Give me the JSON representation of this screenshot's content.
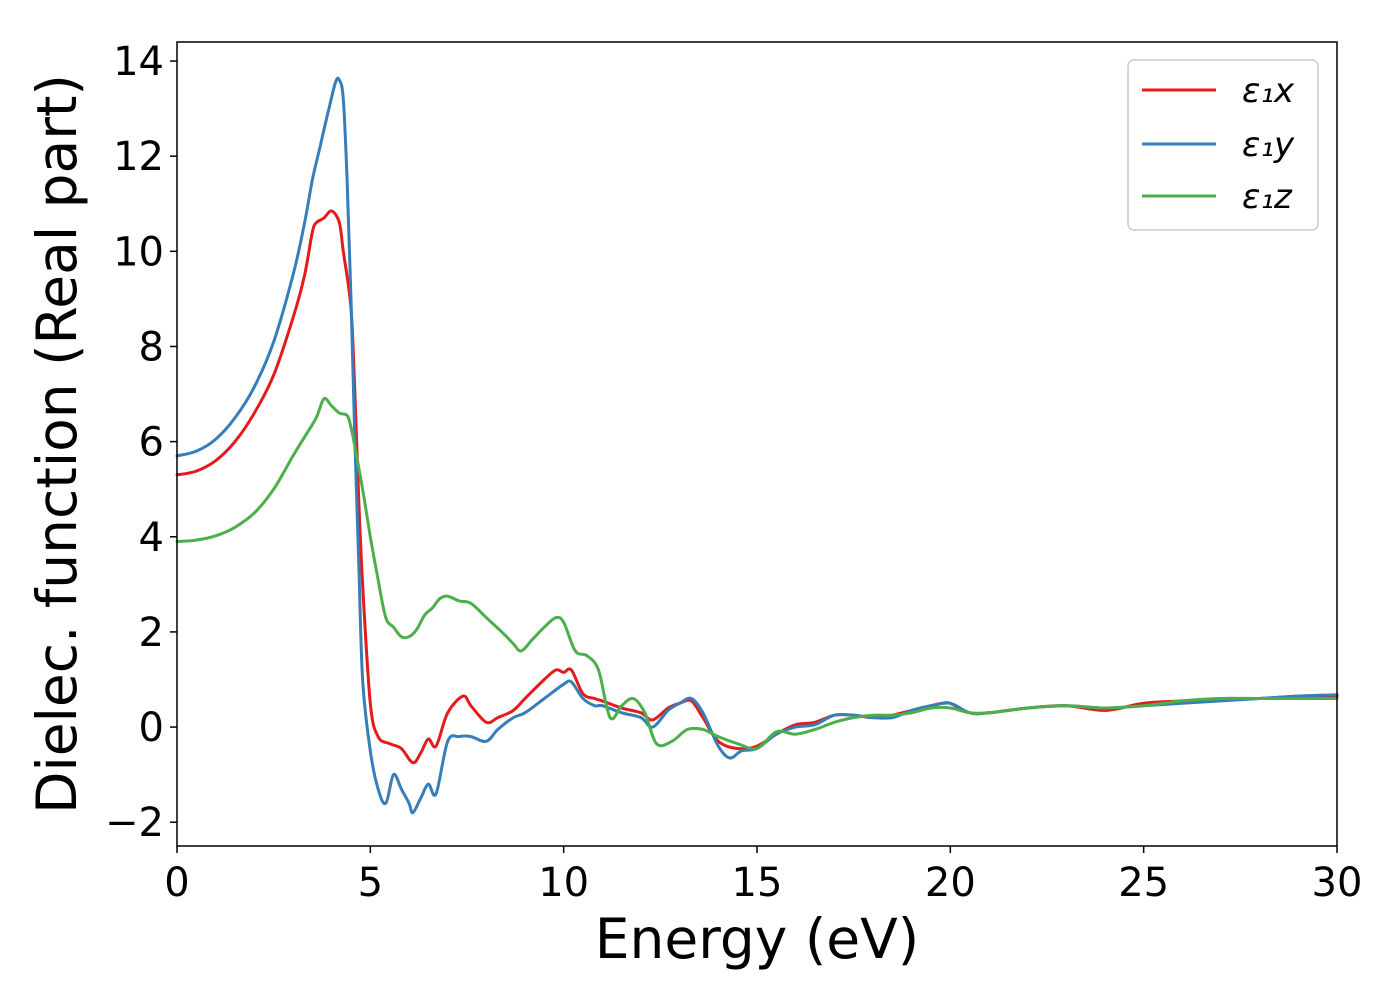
{
  "chart_data": {
    "type": "line",
    "xlabel": "Energy (eV)",
    "ylabel": "Dielec. function (Real part)",
    "xlim": [
      0,
      30
    ],
    "ylim": [
      -2.5,
      14.4
    ],
    "xticks": [
      0,
      5,
      10,
      15,
      20,
      25,
      30
    ],
    "yticks": [
      -2,
      0,
      2,
      4,
      6,
      8,
      10,
      12,
      14
    ],
    "xtick_labels": [
      "0",
      "5",
      "10",
      "15",
      "20",
      "25",
      "30"
    ],
    "ytick_labels": [
      "−2",
      "0",
      "2",
      "4",
      "6",
      "8",
      "10",
      "12",
      "14"
    ],
    "grid": false,
    "legend_position": "top-right",
    "series": [
      {
        "name": "ε₁x",
        "color": "#e41a1c",
        "x": [
          0,
          0.5,
          1,
          1.5,
          2,
          2.5,
          3,
          3.3,
          3.5,
          3.6,
          3.8,
          4.0,
          4.2,
          4.3,
          4.5,
          4.6,
          4.7,
          4.8,
          5.0,
          5.2,
          5.5,
          5.8,
          6.1,
          6.3,
          6.5,
          6.7,
          7.0,
          7.4,
          7.6,
          8.0,
          8.3,
          8.7,
          9.0,
          9.5,
          9.8,
          10.0,
          10.2,
          10.5,
          10.8,
          11.0,
          11.5,
          12.0,
          12.3,
          12.7,
          13.0,
          13.3,
          13.6,
          14.0,
          14.5,
          15.0,
          15.5,
          16.0,
          16.5,
          17.0,
          17.5,
          18.0,
          18.5,
          19.0,
          19.5,
          19.8,
          20.0,
          20.5,
          21.0,
          22.0,
          23.0,
          24.0,
          25.0,
          26.0,
          27.0,
          28.0,
          29.0,
          30.0
        ],
        "y": [
          5.3,
          5.38,
          5.6,
          6.0,
          6.6,
          7.4,
          8.6,
          9.5,
          10.4,
          10.6,
          10.7,
          10.85,
          10.6,
          10.0,
          8.8,
          7.0,
          4.8,
          3.0,
          0.5,
          -0.2,
          -0.35,
          -0.45,
          -0.75,
          -0.55,
          -0.25,
          -0.4,
          0.3,
          0.65,
          0.45,
          0.1,
          0.2,
          0.35,
          0.6,
          1.0,
          1.2,
          1.15,
          1.2,
          0.7,
          0.6,
          0.55,
          0.4,
          0.3,
          0.15,
          0.4,
          0.5,
          0.55,
          0.2,
          -0.3,
          -0.45,
          -0.4,
          -0.15,
          0.05,
          0.1,
          0.25,
          0.25,
          0.2,
          0.25,
          0.35,
          0.45,
          0.5,
          0.5,
          0.3,
          0.3,
          0.4,
          0.45,
          0.35,
          0.5,
          0.55,
          0.6,
          0.6,
          0.65,
          0.65
        ]
      },
      {
        "name": "ε₁y",
        "color": "#377eb8",
        "x": [
          0,
          0.5,
          1,
          1.5,
          2,
          2.5,
          3,
          3.3,
          3.5,
          3.7,
          3.9,
          4.1,
          4.2,
          4.3,
          4.4,
          4.5,
          4.6,
          4.7,
          4.8,
          5.0,
          5.2,
          5.4,
          5.6,
          5.8,
          6.0,
          6.1,
          6.3,
          6.5,
          6.7,
          7.0,
          7.3,
          7.6,
          8.0,
          8.3,
          8.7,
          9.0,
          9.5,
          10.0,
          10.2,
          10.5,
          10.8,
          11.0,
          11.5,
          12.0,
          12.3,
          12.7,
          13.0,
          13.3,
          13.6,
          14.0,
          14.3,
          14.6,
          15.0,
          15.5,
          16.0,
          16.5,
          17.0,
          17.5,
          18.0,
          18.5,
          19.0,
          19.5,
          20.0,
          20.5,
          21.0,
          22.0,
          23.0,
          24.0,
          25.0,
          26.0,
          27.0,
          28.0,
          29.0,
          30.0
        ],
        "y": [
          5.7,
          5.8,
          6.05,
          6.5,
          7.15,
          8.1,
          9.5,
          10.6,
          11.5,
          12.2,
          12.9,
          13.55,
          13.6,
          13.2,
          11.5,
          9.0,
          6.0,
          3.5,
          1.0,
          -0.5,
          -1.3,
          -1.6,
          -1.0,
          -1.3,
          -1.6,
          -1.8,
          -1.5,
          -1.2,
          -1.4,
          -0.3,
          -0.2,
          -0.2,
          -0.3,
          -0.05,
          0.2,
          0.3,
          0.6,
          0.9,
          0.95,
          0.6,
          0.45,
          0.45,
          0.3,
          0.2,
          0.0,
          0.35,
          0.5,
          0.6,
          0.3,
          -0.4,
          -0.65,
          -0.5,
          -0.45,
          -0.15,
          0.0,
          0.05,
          0.25,
          0.25,
          0.2,
          0.2,
          0.35,
          0.45,
          0.5,
          0.3,
          0.3,
          0.4,
          0.45,
          0.4,
          0.45,
          0.5,
          0.55,
          0.6,
          0.65,
          0.68
        ]
      },
      {
        "name": "ε₁z",
        "color": "#4daf4a",
        "x": [
          0,
          0.5,
          1,
          1.5,
          2,
          2.5,
          3,
          3.3,
          3.6,
          3.8,
          4.0,
          4.2,
          4.4,
          4.5,
          4.6,
          4.8,
          5.0,
          5.2,
          5.4,
          5.6,
          5.8,
          6.0,
          6.2,
          6.4,
          6.6,
          6.8,
          7.0,
          7.3,
          7.6,
          8.0,
          8.4,
          8.7,
          8.9,
          9.2,
          9.5,
          9.8,
          10.0,
          10.3,
          10.6,
          10.9,
          11.2,
          11.5,
          11.8,
          12.1,
          12.4,
          12.8,
          13.2,
          13.6,
          14.0,
          14.5,
          15.0,
          15.5,
          16.0,
          16.5,
          17.0,
          17.5,
          18.0,
          18.5,
          19.0,
          19.5,
          20.0,
          20.5,
          21.0,
          22.0,
          23.0,
          24.0,
          25.0,
          26.0,
          27.0,
          28.0,
          29.0,
          30.0
        ],
        "y": [
          3.9,
          3.93,
          4.02,
          4.2,
          4.5,
          5.0,
          5.7,
          6.1,
          6.5,
          6.9,
          6.75,
          6.6,
          6.55,
          6.3,
          5.9,
          5.0,
          4.0,
          3.1,
          2.3,
          2.1,
          1.9,
          1.9,
          2.05,
          2.35,
          2.5,
          2.7,
          2.75,
          2.65,
          2.6,
          2.3,
          2.0,
          1.75,
          1.6,
          1.85,
          2.1,
          2.3,
          2.2,
          1.6,
          1.5,
          1.2,
          0.2,
          0.45,
          0.6,
          0.3,
          -0.35,
          -0.3,
          -0.05,
          -0.05,
          -0.2,
          -0.35,
          -0.45,
          -0.1,
          -0.15,
          -0.05,
          0.1,
          0.2,
          0.25,
          0.25,
          0.3,
          0.4,
          0.4,
          0.3,
          0.3,
          0.4,
          0.45,
          0.4,
          0.45,
          0.55,
          0.6,
          0.6,
          0.6,
          0.6
        ]
      }
    ]
  }
}
